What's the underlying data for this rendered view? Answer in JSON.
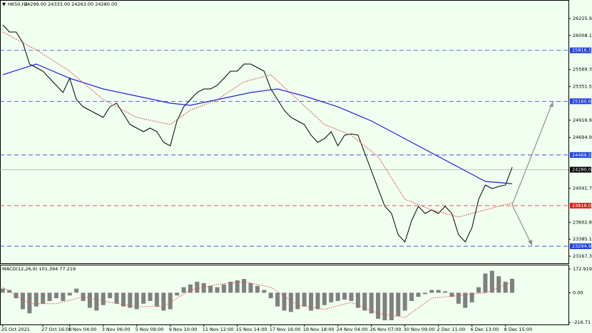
{
  "chart_data": {
    "type": "line",
    "title": "HK50,H1",
    "header_values": "24299.00 24333.00 24263.00 24280.00",
    "xlim": [
      -0.4,
      84.4
    ],
    "ylim": [
      23076,
      26464
    ],
    "yticks": [
      26225.95,
      26008.15,
      {
        "value": 25569.3,
        "label": "25569.30"
      },
      25351.55,
      24916.95,
      24694.95,
      {
        "value": 24041.7,
        "label": "24041.70"
      },
      23602.85,
      {
        "value": 23385.1,
        "label": "23385.10"
      },
      23167.35
    ],
    "xticks": [
      {
        "value": 0,
        "label": "25 Oct 2021"
      },
      {
        "value": 6,
        "label": "27 Oct 16:00"
      },
      {
        "value": 10,
        "label": "1 Nov 04:00"
      },
      {
        "value": 15,
        "label": "3 Nov 06:00"
      },
      {
        "value": 20,
        "label": "5 Nov 09:00"
      },
      {
        "value": 25,
        "label": "9 Nov 10:00"
      },
      {
        "value": 30,
        "label": "11 Nov 12:00"
      },
      {
        "value": 35,
        "label": "15 Nov 14:00"
      },
      {
        "value": 40,
        "label": "17 Nov 16:00"
      },
      {
        "value": 45,
        "label": "19 Nov 18:00"
      },
      {
        "value": 50,
        "label": "24 Nov 04:00"
      },
      {
        "value": 55,
        "label": "26 Nov 07:00"
      },
      {
        "value": 60,
        "label": "30 Nov 09:00"
      },
      {
        "value": 65,
        "label": "2 Dec 11:00"
      },
      {
        "value": 70,
        "label": "6 Dec 13:00"
      },
      {
        "value": 75,
        "label": "8 Dec 15:00"
      }
    ],
    "series": [
      {
        "color": "#000000",
        "values": [
          26144,
          26052,
          26052,
          25915,
          25640,
          25594,
          25548,
          25457,
          25365,
          25274,
          25457,
          25182,
          25090,
          25045,
          24999,
          24953,
          25090,
          25136,
          24999,
          24862,
          24816,
          24770,
          24816,
          24770,
          24633,
          24587,
          24907,
          25090,
          25182,
          25274,
          25319,
          25319,
          25365,
          25457,
          25548,
          25548,
          25640,
          25640,
          25594,
          25548,
          25319,
          25182,
          25045,
          24953,
          24907,
          24862,
          24724,
          24633,
          24678,
          24770,
          24587,
          24724,
          24742,
          24724,
          24495,
          24266,
          24037,
          23809,
          23717,
          23442,
          23351,
          23625,
          23809,
          23717,
          23763,
          23717,
          23809,
          23717,
          23442,
          23351,
          23534,
          23900,
          24083,
          24037,
          24065,
          24083,
          24312
        ]
      },
      {
        "color": "#2020e0",
        "x": [
          0,
          5,
          10,
          15,
          20,
          25,
          28,
          32,
          37,
          41,
          45,
          50,
          55,
          60,
          64,
          68,
          72,
          76
        ],
        "values": [
          25502,
          25640,
          25457,
          25319,
          25228,
          25136,
          25109,
          25182,
          25274,
          25319,
          25228,
          25090,
          24907,
          24678,
          24495,
          24312,
          24129,
          24101
        ]
      },
      {
        "color": "#e05050",
        "dotted": true,
        "x": [
          0,
          5,
          10,
          15,
          20,
          25,
          28,
          32,
          36,
          40,
          44,
          48,
          52,
          56,
          60,
          64,
          68,
          72,
          76
        ],
        "values": [
          26052,
          25823,
          25548,
          25182,
          24953,
          24862,
          25045,
          25182,
          25411,
          25502,
          25182,
          24862,
          24724,
          24449,
          23900,
          23763,
          23671,
          23763,
          23854
        ]
      }
    ],
    "levels": [
      {
        "value": 25816.19,
        "color": "#2040e0"
      },
      {
        "value": 25160.63,
        "color": "#2040e0"
      },
      {
        "value": 24469.58,
        "color": "#2040e0"
      },
      {
        "value": 24280,
        "label": "24280.00",
        "color": "#000000"
      },
      {
        "value": 23818,
        "label": "23818.00",
        "color": "#e02020"
      },
      {
        "value": 23294.97,
        "color": "#2040e0"
      }
    ],
    "macd": {
      "type": "bar",
      "title": "MACD(12,26,9) 101.394 77.219",
      "ylim": [
        -231,
        204
      ],
      "yticks": [
        172.919,
        {
          "value": 0,
          "label": "0.00"
        },
        -216.71
      ],
      "histogram": {
        "color": "#808080",
        "values": [
          30,
          20,
          -40,
          -120,
          -150,
          -100,
          -80,
          -60,
          -40,
          -60,
          -20,
          30,
          -60,
          -110,
          -130,
          -90,
          -40,
          -80,
          -100,
          -110,
          -120,
          -80,
          -60,
          -100,
          -130,
          -120,
          -20,
          40,
          60,
          80,
          70,
          50,
          40,
          60,
          80,
          90,
          100,
          70,
          50,
          20,
          -40,
          -100,
          -130,
          -140,
          -120,
          -100,
          -130,
          -120,
          -90,
          -70,
          -60,
          -50,
          -60,
          -110,
          -130,
          -150,
          -190,
          -200,
          -200,
          -170,
          -130,
          -60,
          -30,
          -10,
          20,
          20,
          10,
          -30,
          -80,
          -110,
          -70,
          40,
          140,
          160,
          120,
          80,
          101.394
        ]
      },
      "signal": {
        "color": "#e05050",
        "x": [
          0,
          4,
          8,
          12,
          16,
          20,
          24,
          28,
          32,
          36,
          40,
          44,
          48,
          52,
          56,
          60,
          64,
          68,
          72,
          76
        ],
        "values": [
          40,
          -80,
          -80,
          -30,
          -70,
          -100,
          -100,
          20,
          60,
          80,
          40,
          -90,
          -120,
          -70,
          -150,
          -180,
          -40,
          -20,
          0,
          77.219
        ]
      }
    }
  }
}
